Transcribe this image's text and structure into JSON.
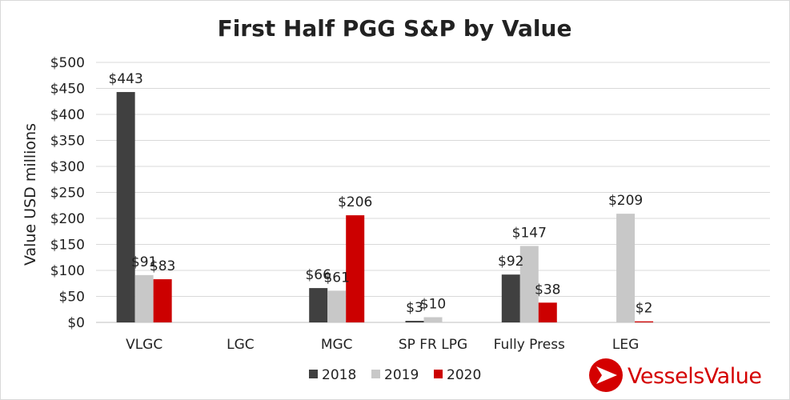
{
  "chart_data": {
    "type": "bar",
    "title": "First Half PGG S&P by Value",
    "ylabel": "Value USD millions",
    "xlabel": "",
    "ylim": [
      0,
      500
    ],
    "yticks": [
      0,
      50,
      100,
      150,
      200,
      250,
      300,
      350,
      400,
      450,
      500
    ],
    "ytick_labels": [
      "$0",
      "$50",
      "$100",
      "$150",
      "$200",
      "$250",
      "$300",
      "$350",
      "$400",
      "$450",
      "$500"
    ],
    "grid": true,
    "legend_position": "bottom",
    "categories": [
      "VLGC",
      "LGC",
      "MGC",
      "SP FR LPG",
      "Fully Press",
      "LEG"
    ],
    "series": [
      {
        "name": "2018",
        "color": "#404040",
        "values": [
          443,
          null,
          66,
          3,
          92,
          null
        ],
        "labels": [
          "$443",
          "",
          "$66",
          "$3",
          "$92",
          ""
        ]
      },
      {
        "name": "2019",
        "color": "#c8c8c8",
        "values": [
          91,
          null,
          61,
          10,
          147,
          209
        ],
        "labels": [
          "$91",
          "",
          "$61",
          "$10",
          "$147",
          "$209"
        ]
      },
      {
        "name": "2020",
        "color": "#cc0000",
        "values": [
          83,
          null,
          206,
          null,
          38,
          2
        ],
        "labels": [
          "$83",
          "",
          "$206",
          "",
          "$38",
          "$2"
        ]
      }
    ]
  },
  "logo": {
    "text": "VesselsValue",
    "color": "#d40000"
  }
}
